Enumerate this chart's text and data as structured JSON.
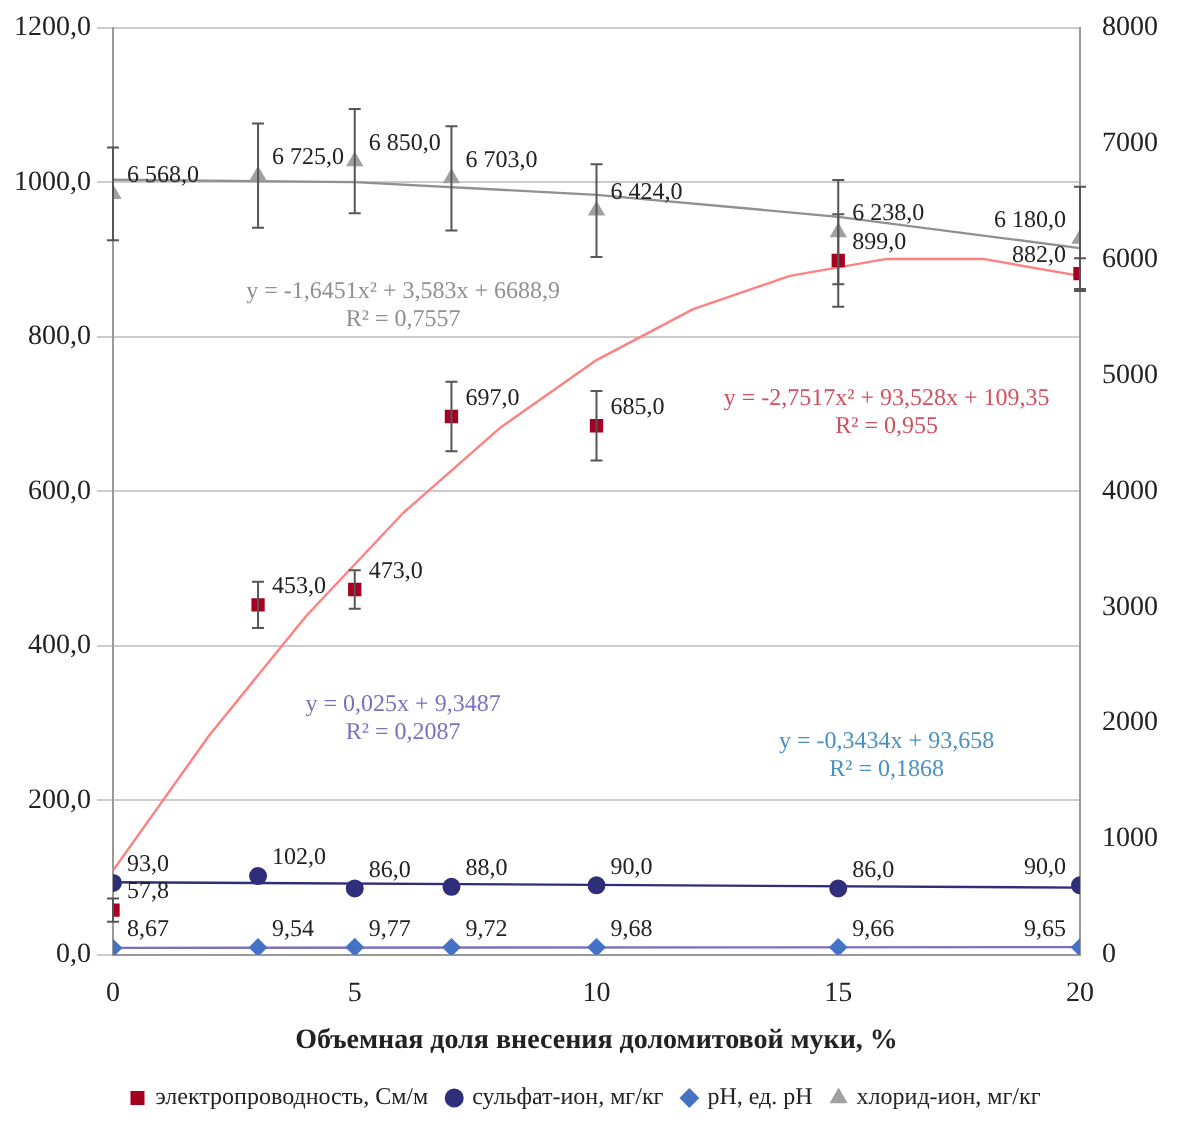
{
  "chart_data": {
    "type": "scatter",
    "xlabel": "Объемная доля внесения доломитовой муки, %",
    "x": [
      0,
      3,
      5,
      7,
      10,
      15,
      20
    ],
    "xlim": [
      0,
      20
    ],
    "xticks": [
      0,
      5,
      10,
      15,
      20
    ],
    "ylim": [
      0,
      1200
    ],
    "yticks": [
      {
        "value": 0,
        "label": "0,0"
      },
      {
        "value": 200,
        "label": "200,0"
      },
      {
        "value": 400,
        "label": "400,0"
      },
      {
        "value": 600,
        "label": "600,0"
      },
      {
        "value": 800,
        "label": "800,0"
      },
      {
        "value": 1000,
        "label": "1000,0"
      },
      {
        "value": 1200,
        "label": "1200,0"
      }
    ],
    "y2lim": [
      0,
      8000
    ],
    "y2ticks": [
      0,
      1000,
      2000,
      3000,
      4000,
      5000,
      6000,
      7000,
      8000
    ],
    "grid": "y",
    "legend": "bottom",
    "series": [
      {
        "name": "электропроводность, См/м",
        "color": "#a50021",
        "marker": "square",
        "values": [
          57.8,
          453,
          473,
          697,
          685,
          899,
          882
        ],
        "errors": [
          15,
          30,
          25,
          45,
          45,
          60,
          20
        ],
        "value_labels": [
          "57,8",
          "453,0",
          "473,0",
          "697,0",
          "685,0",
          "899,0",
          "882,0"
        ]
      },
      {
        "name": "сульфат-ион, мг/кг",
        "color": "#2e2e7a",
        "marker": "circle",
        "values": [
          93,
          102,
          86,
          88,
          90,
          86,
          90
        ],
        "value_labels": [
          "93,0",
          "102,0",
          "86,0",
          "88,0",
          "90,0",
          "86,0",
          "90,0"
        ]
      },
      {
        "name": "pH, ед. pH",
        "color": "#4472c4",
        "marker": "diamond",
        "values": [
          8.67,
          9.54,
          9.77,
          9.72,
          9.68,
          9.66,
          9.65
        ],
        "value_labels": [
          "8,67",
          "9,54",
          "9,77",
          "9,72",
          "9,68",
          "9,66",
          "9,65"
        ]
      },
      {
        "name": "хлорид-ион, мг/кг",
        "color": "#a0a0a0",
        "marker": "triangle",
        "axis": "y2",
        "values": [
          6568,
          6725,
          6850,
          6703,
          6424,
          6238,
          6180
        ],
        "errors": [
          400,
          450,
          450,
          450,
          400,
          450,
          450
        ],
        "value_labels": [
          "6 568,0",
          "6 725,0",
          "6 850,0",
          "6 703,0",
          "6 424,0",
          "6 238,0",
          "6 180,0"
        ]
      },
      {
        "type": "line",
        "color": "#ff8080",
        "marker": "none",
        "x": [
          0,
          2,
          4,
          6,
          8,
          10,
          12,
          14,
          16,
          18,
          20
        ],
        "values": [
          109,
          285,
          439,
          572,
          682,
          770,
          836,
          879,
          901,
          901,
          879
        ]
      },
      {
        "type": "line",
        "color": "#909090",
        "marker": "none",
        "axis": "y2",
        "x": [
          0,
          5,
          10,
          15,
          20
        ],
        "values": [
          6690,
          6670,
          6560,
          6370,
          6100
        ]
      },
      {
        "type": "line",
        "color": "#2e2e7a",
        "marker": "none",
        "x": [
          0,
          20
        ],
        "values": [
          94,
          87
        ]
      },
      {
        "type": "line",
        "color": "#7f6fbf",
        "marker": "none",
        "x": [
          0,
          20
        ],
        "values": [
          9,
          10
        ]
      }
    ],
    "annotations": [
      "y = -1,6451x² + 3,583x + 6688,9",
      "R² = 0,7557",
      "y = -2,7517x² + 93,528x + 109,35",
      "R² = 0,955",
      "y = 0,025x + 9,3487",
      "R² = 0,2087",
      "y = -0,3434x + 93,658",
      "R² = 0,1868"
    ]
  }
}
